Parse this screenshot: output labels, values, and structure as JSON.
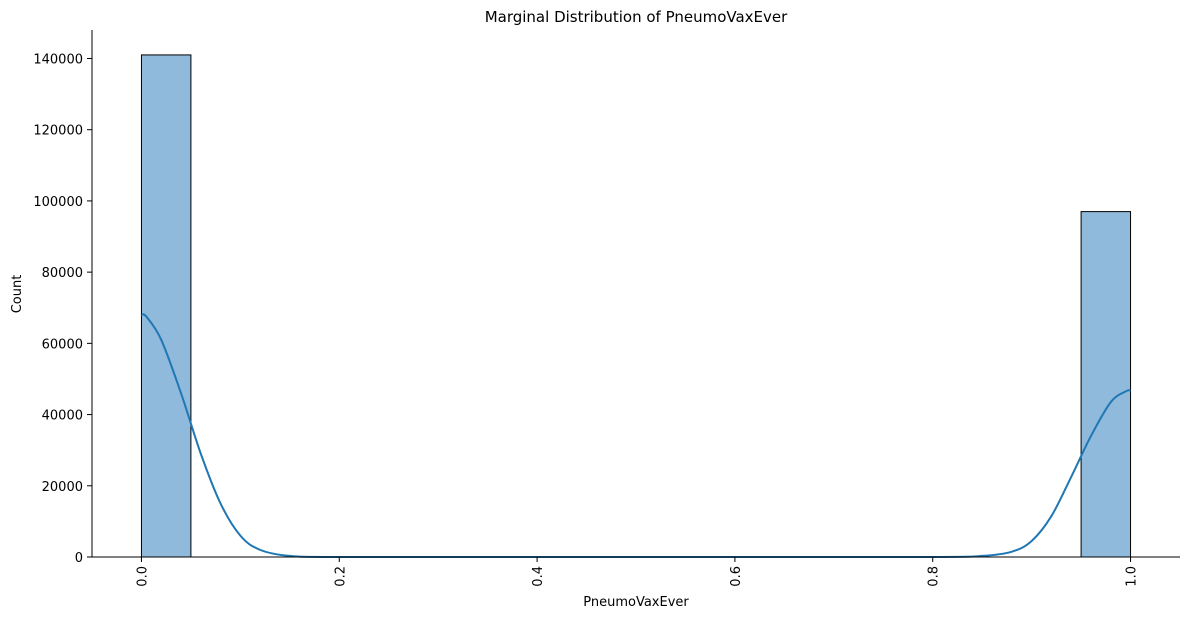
{
  "chart_data": {
    "type": "bar",
    "subtype": "histogram-with-kde",
    "title": "Marginal Distribution of PneumoVaxEver",
    "xlabel": "PneumoVaxEver",
    "ylabel": "Count",
    "xlim": [
      -0.05,
      1.05
    ],
    "ylim": [
      0,
      148000
    ],
    "x_ticks": [
      "0.0",
      "0.2",
      "0.4",
      "0.6",
      "0.8",
      "1.0"
    ],
    "x_tick_values": [
      0.0,
      0.2,
      0.4,
      0.6,
      0.8,
      1.0
    ],
    "x_tick_rotation": "vertical",
    "y_ticks": [
      "0",
      "20000",
      "40000",
      "60000",
      "80000",
      "100000",
      "120000",
      "140000"
    ],
    "y_tick_values": [
      0,
      20000,
      40000,
      60000,
      80000,
      100000,
      120000,
      140000
    ],
    "bins": [
      {
        "x0": 0.0,
        "x1": 0.05,
        "count": 141000
      },
      {
        "x0": 0.95,
        "x1": 1.0,
        "count": 97000
      }
    ],
    "kde": {
      "x": [
        0.0,
        0.005,
        0.02,
        0.04,
        0.06,
        0.08,
        0.1,
        0.12,
        0.15,
        0.2,
        0.4,
        0.6,
        0.8,
        0.85,
        0.88,
        0.9,
        0.92,
        0.94,
        0.96,
        0.98,
        0.995,
        1.0
      ],
      "y": [
        68000,
        67500,
        61000,
        46000,
        29000,
        15000,
        6000,
        2000,
        300,
        0,
        0,
        0,
        0,
        300,
        1500,
        4500,
        11500,
        22500,
        34000,
        43500,
        46500,
        46800
      ]
    },
    "colors": {
      "bar_fill": "#8fbadb",
      "bar_edge": "#000000",
      "kde_line": "#1f77b4"
    },
    "grid": false,
    "spines": "left-bottom"
  }
}
